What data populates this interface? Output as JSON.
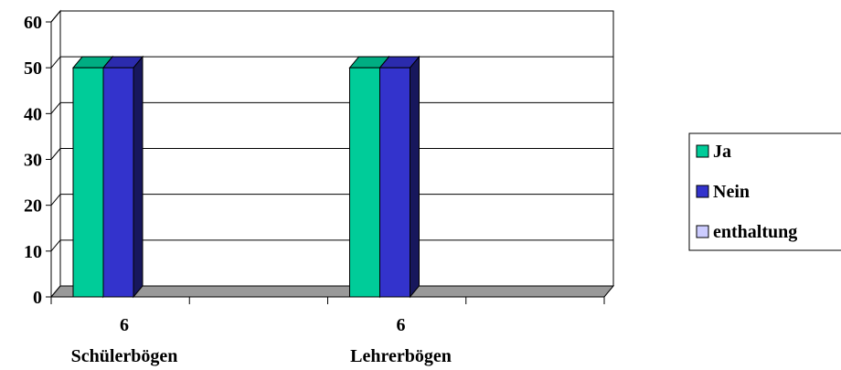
{
  "chart_data": {
    "type": "bar",
    "title": "",
    "xlabel": "",
    "ylabel": "",
    "ylim": [
      0,
      60
    ],
    "yticks": [
      "0",
      "10",
      "20",
      "30",
      "40",
      "50",
      "60"
    ],
    "categories": [
      {
        "top": "6",
        "bottom": "Schülerbögen"
      },
      {
        "top": "6",
        "bottom": "Lehrerbögen"
      }
    ],
    "series": [
      {
        "name": "Ja",
        "color": "#00cc99",
        "values": [
          50,
          50
        ]
      },
      {
        "name": "Nein",
        "color": "#3333cc",
        "values": [
          50,
          50
        ]
      },
      {
        "name": "enthaltung",
        "color": "#ccccff",
        "values": [
          0,
          0
        ]
      }
    ],
    "grid": true,
    "legend_position": "right",
    "style": "3d"
  }
}
